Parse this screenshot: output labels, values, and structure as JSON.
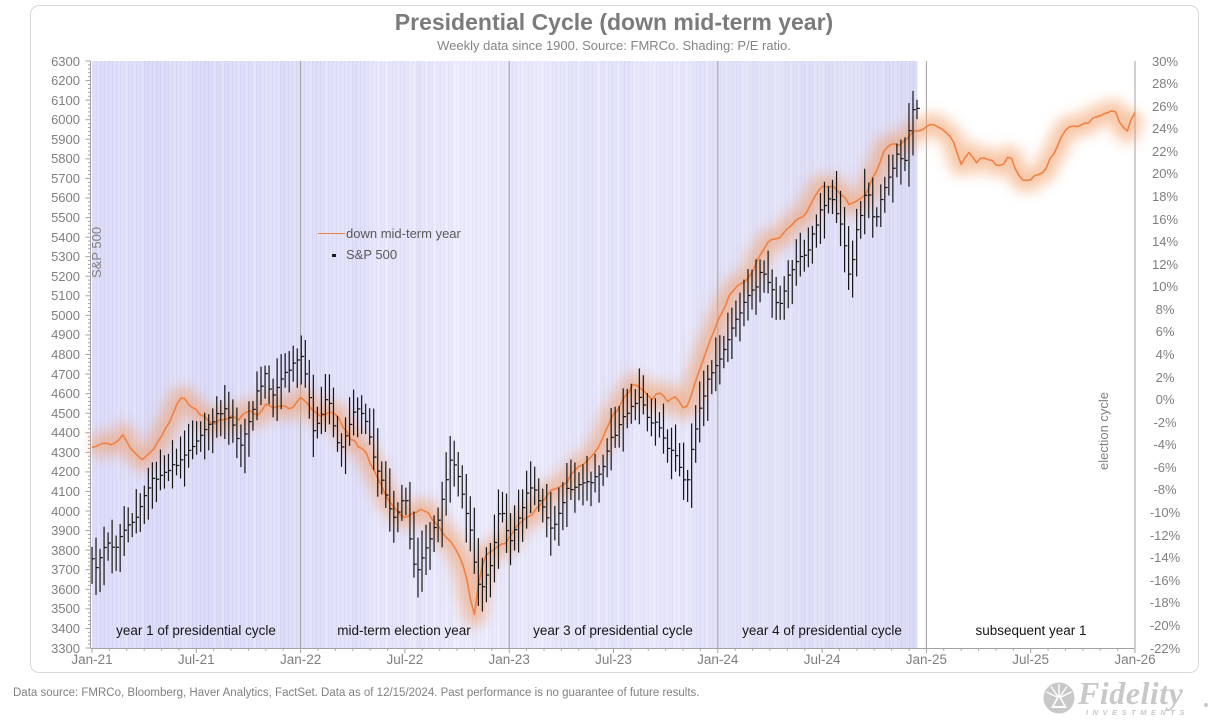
{
  "header": {
    "title": "Presidential Cycle (down mid-term year)",
    "subtitle": "Weekly data since 1900. Source: FMRCo. Shading: P/E ratio."
  },
  "footer": {
    "text": "Data source: FMRCo, Bloomberg, Haver Analytics, FactSet. Data as of 12/15/2024. Past performance is no guarantee of future results."
  },
  "logo": {
    "brand": "Fidelity",
    "sub": "INVESTMENTS"
  },
  "colors": {
    "cycle_line": "#ef8243",
    "cycle_glow": "#f29b63",
    "sp500_bars": "#161616",
    "shading_base": "rgb(95,95,216)",
    "gridline": "#a2a2a2",
    "axis_text": "#7f7f7f",
    "title_text": "#7b7b7b",
    "phase_text": "#151515"
  },
  "chart_data": {
    "type": "line",
    "title": "Presidential Cycle (down mid-term year)",
    "subtitle": "Weekly data since 1900. Source: FMRCo. Shading: P/E ratio.",
    "left_axis": {
      "label": "S&P 500",
      "min": 3300,
      "max": 6300,
      "step": 100
    },
    "right_axis": {
      "label": "election cycle",
      "min": -22,
      "max": 30,
      "step": 2,
      "format": "percent"
    },
    "x_axis": {
      "ticks": [
        "Jan-21",
        "Jul-21",
        "Jan-22",
        "Jul-22",
        "Jan-23",
        "Jul-23",
        "Jan-24",
        "Jul-24",
        "Jan-25",
        "Jul-25",
        "Jan-26"
      ],
      "years_shown": 5,
      "gridlines_at": [
        "Jan-22",
        "Jan-23",
        "Jan-24",
        "Jan-25",
        "Jan-26"
      ]
    },
    "phase_labels": [
      "year 1 of presidential cycle",
      "mid-term election year",
      "year 3 of presidential cycle",
      "year 4 of presidential cycle",
      "subsequent year 1"
    ],
    "legend": [
      {
        "label": "down mid-term year",
        "type": "line",
        "color": "#ef8243"
      },
      {
        "label": "S&P 500",
        "type": "dot",
        "color": "#1a1a1a"
      }
    ],
    "series": [
      {
        "name": "down mid-term year",
        "axis": "right",
        "unit": "%",
        "description": "average election-cycle path of down mid-term years, weekly data since 1900, indexed to 0% at start of mid-term year",
        "points": [
          [
            0.0,
            -4.5
          ],
          [
            0.06,
            -3.6
          ],
          [
            0.1,
            -4.0
          ],
          [
            0.15,
            -3.4
          ],
          [
            0.19,
            -4.3
          ],
          [
            0.25,
            -5.3
          ],
          [
            0.29,
            -4.8
          ],
          [
            0.33,
            -3.2
          ],
          [
            0.38,
            -1.5
          ],
          [
            0.42,
            0.2
          ],
          [
            0.46,
            -0.4
          ],
          [
            0.5,
            -0.7
          ],
          [
            0.54,
            -1.6
          ],
          [
            0.58,
            -2.4
          ],
          [
            0.63,
            -1.7
          ],
          [
            0.67,
            -1.4
          ],
          [
            0.71,
            -1.9
          ],
          [
            0.75,
            -1.0
          ],
          [
            0.79,
            -1.3
          ],
          [
            0.83,
            -0.4
          ],
          [
            0.88,
            -1.0
          ],
          [
            0.92,
            -0.4
          ],
          [
            0.96,
            -0.7
          ],
          [
            1.0,
            0.0
          ],
          [
            1.04,
            -0.6
          ],
          [
            1.08,
            -1.1
          ],
          [
            1.11,
            -1.4
          ],
          [
            1.15,
            -1.2
          ],
          [
            1.19,
            -2.0
          ],
          [
            1.23,
            -3.0
          ],
          [
            1.27,
            -3.9
          ],
          [
            1.31,
            -4.8
          ],
          [
            1.35,
            -6.2
          ],
          [
            1.4,
            -8.0
          ],
          [
            1.44,
            -9.6
          ],
          [
            1.48,
            -10.4
          ],
          [
            1.52,
            -10.2
          ],
          [
            1.56,
            -9.7
          ],
          [
            1.6,
            -10.0
          ],
          [
            1.65,
            -10.9
          ],
          [
            1.69,
            -11.8
          ],
          [
            1.73,
            -13.0
          ],
          [
            1.77,
            -14.2
          ],
          [
            1.8,
            -16.0
          ],
          [
            1.83,
            -19.4
          ],
          [
            1.86,
            -15.3
          ],
          [
            1.89,
            -13.8
          ],
          [
            1.92,
            -13.5
          ],
          [
            1.95,
            -12.9
          ],
          [
            2.0,
            -12.2
          ],
          [
            2.05,
            -11.0
          ],
          [
            2.1,
            -10.2
          ],
          [
            2.15,
            -9.2
          ],
          [
            2.2,
            -8.2
          ],
          [
            2.25,
            -7.6
          ],
          [
            2.3,
            -6.6
          ],
          [
            2.35,
            -5.9
          ],
          [
            2.4,
            -4.6
          ],
          [
            2.44,
            -3.8
          ],
          [
            2.48,
            -2.2
          ],
          [
            2.52,
            -0.8
          ],
          [
            2.56,
            0.6
          ],
          [
            2.6,
            1.4
          ],
          [
            2.64,
            0.8
          ],
          [
            2.68,
            0.2
          ],
          [
            2.72,
            0.8
          ],
          [
            2.76,
            -0.3
          ],
          [
            2.8,
            0.3
          ],
          [
            2.84,
            -0.8
          ],
          [
            2.88,
            0.8
          ],
          [
            2.92,
            2.8
          ],
          [
            2.96,
            5.2
          ],
          [
            3.0,
            7.3
          ],
          [
            3.08,
            9.7
          ],
          [
            3.16,
            11.3
          ],
          [
            3.25,
            14.1
          ],
          [
            3.32,
            14.8
          ],
          [
            3.4,
            16.1
          ],
          [
            3.49,
            18.7
          ],
          [
            3.56,
            19.0
          ],
          [
            3.6,
            18.2
          ],
          [
            3.63,
            17.2
          ],
          [
            3.69,
            17.8
          ],
          [
            3.76,
            20.3
          ],
          [
            3.82,
            22.6
          ],
          [
            3.88,
            22.8
          ],
          [
            3.95,
            23.7
          ],
          [
            4.0,
            24.2
          ],
          [
            4.03,
            24.6
          ],
          [
            4.08,
            23.7
          ],
          [
            4.13,
            22.8
          ],
          [
            4.17,
            21.0
          ],
          [
            4.2,
            21.8
          ],
          [
            4.24,
            20.9
          ],
          [
            4.28,
            21.6
          ],
          [
            4.32,
            21.2
          ],
          [
            4.36,
            20.6
          ],
          [
            4.4,
            21.5
          ],
          [
            4.44,
            20.2
          ],
          [
            4.48,
            19.4
          ],
          [
            4.52,
            19.6
          ],
          [
            4.56,
            20.1
          ],
          [
            4.6,
            21.7
          ],
          [
            4.64,
            22.9
          ],
          [
            4.68,
            23.9
          ],
          [
            4.72,
            24.3
          ],
          [
            4.77,
            24.6
          ],
          [
            4.82,
            24.9
          ],
          [
            4.86,
            25.3
          ],
          [
            4.9,
            26.1
          ],
          [
            4.93,
            24.3
          ],
          [
            4.96,
            23.6
          ],
          [
            5.0,
            25.4
          ]
        ]
      },
      {
        "name": "S&P 500",
        "axis": "left",
        "style": "weekly high-low bars with close tick",
        "last_data_t": 3.955,
        "anchors": [
          [
            0.0,
            3757
          ],
          [
            0.02,
            3715
          ],
          [
            0.05,
            3790
          ],
          [
            0.08,
            3840
          ],
          [
            0.11,
            3800
          ],
          [
            0.14,
            3890
          ],
          [
            0.17,
            3915
          ],
          [
            0.21,
            3960
          ],
          [
            0.25,
            4080
          ],
          [
            0.29,
            4160
          ],
          [
            0.33,
            4190
          ],
          [
            0.38,
            4230
          ],
          [
            0.42,
            4250
          ],
          [
            0.46,
            4300
          ],
          [
            0.5,
            4360
          ],
          [
            0.54,
            4420
          ],
          [
            0.58,
            4470
          ],
          [
            0.63,
            4520
          ],
          [
            0.67,
            4460
          ],
          [
            0.71,
            4330
          ],
          [
            0.75,
            4450
          ],
          [
            0.79,
            4600
          ],
          [
            0.83,
            4690
          ],
          [
            0.86,
            4590
          ],
          [
            0.9,
            4660
          ],
          [
            0.94,
            4720
          ],
          [
            0.98,
            4770
          ],
          [
            1.005,
            4795
          ],
          [
            1.03,
            4680
          ],
          [
            1.06,
            4410
          ],
          [
            1.1,
            4500
          ],
          [
            1.13,
            4590
          ],
          [
            1.17,
            4370
          ],
          [
            1.19,
            4300
          ],
          [
            1.23,
            4420
          ],
          [
            1.27,
            4540
          ],
          [
            1.31,
            4480
          ],
          [
            1.35,
            4270
          ],
          [
            1.4,
            4120
          ],
          [
            1.44,
            3960
          ],
          [
            1.48,
            4020
          ],
          [
            1.5,
            4110
          ],
          [
            1.52,
            3900
          ],
          [
            1.55,
            3670
          ],
          [
            1.58,
            3760
          ],
          [
            1.62,
            3860
          ],
          [
            1.66,
            3960
          ],
          [
            1.69,
            4120
          ],
          [
            1.72,
            4280
          ],
          [
            1.75,
            4200
          ],
          [
            1.78,
            4060
          ],
          [
            1.81,
            3920
          ],
          [
            1.84,
            3680
          ],
          [
            1.86,
            3585
          ],
          [
            1.88,
            3640
          ],
          [
            1.9,
            3700
          ],
          [
            1.92,
            3760
          ],
          [
            1.94,
            3950
          ],
          [
            1.96,
            4020
          ],
          [
            1.98,
            3920
          ],
          [
            2.0,
            3840
          ],
          [
            2.02,
            3890
          ],
          [
            2.06,
            4010
          ],
          [
            2.1,
            4130
          ],
          [
            2.13,
            4090
          ],
          [
            2.17,
            3990
          ],
          [
            2.2,
            3900
          ],
          [
            2.23,
            3950
          ],
          [
            2.27,
            4100
          ],
          [
            2.31,
            4130
          ],
          [
            2.35,
            4140
          ],
          [
            2.4,
            4150
          ],
          [
            2.44,
            4200
          ],
          [
            2.48,
            4350
          ],
          [
            2.52,
            4420
          ],
          [
            2.56,
            4500
          ],
          [
            2.6,
            4560
          ],
          [
            2.63,
            4580
          ],
          [
            2.67,
            4450
          ],
          [
            2.71,
            4460
          ],
          [
            2.75,
            4330
          ],
          [
            2.79,
            4320
          ],
          [
            2.83,
            4170
          ],
          [
            2.85,
            4120
          ],
          [
            2.88,
            4360
          ],
          [
            2.92,
            4550
          ],
          [
            2.96,
            4700
          ],
          [
            3.0,
            4760
          ],
          [
            3.04,
            4870
          ],
          [
            3.08,
            4960
          ],
          [
            3.13,
            5080
          ],
          [
            3.17,
            5120
          ],
          [
            3.21,
            5230
          ],
          [
            3.25,
            5150
          ],
          [
            3.29,
            5020
          ],
          [
            3.33,
            5180
          ],
          [
            3.38,
            5280
          ],
          [
            3.42,
            5300
          ],
          [
            3.46,
            5420
          ],
          [
            3.5,
            5550
          ],
          [
            3.54,
            5620
          ],
          [
            3.58,
            5500
          ],
          [
            3.61,
            5350
          ],
          [
            3.63,
            5180
          ],
          [
            3.66,
            5400
          ],
          [
            3.7,
            5600
          ],
          [
            3.73,
            5630
          ],
          [
            3.75,
            5440
          ],
          [
            3.79,
            5620
          ],
          [
            3.83,
            5750
          ],
          [
            3.87,
            5830
          ],
          [
            3.89,
            5720
          ],
          [
            3.92,
            5960
          ],
          [
            3.94,
            6090
          ],
          [
            3.955,
            6050
          ]
        ]
      }
    ],
    "shading": {
      "label": "P/E ratio",
      "end_t": 3.955,
      "monthly_intensity": [
        0.72,
        0.66,
        0.62,
        0.68,
        0.67,
        0.62,
        0.66,
        0.68,
        0.62,
        0.58,
        0.63,
        0.68,
        0.62,
        0.55,
        0.5,
        0.52,
        0.4,
        0.3,
        0.32,
        0.36,
        0.25,
        0.16,
        0.2,
        0.22,
        0.26,
        0.3,
        0.28,
        0.3,
        0.33,
        0.4,
        0.45,
        0.4,
        0.36,
        0.3,
        0.36,
        0.42,
        0.46,
        0.5,
        0.52,
        0.46,
        0.5,
        0.55,
        0.58,
        0.54,
        0.58,
        0.62,
        0.68,
        0.72
      ]
    }
  }
}
